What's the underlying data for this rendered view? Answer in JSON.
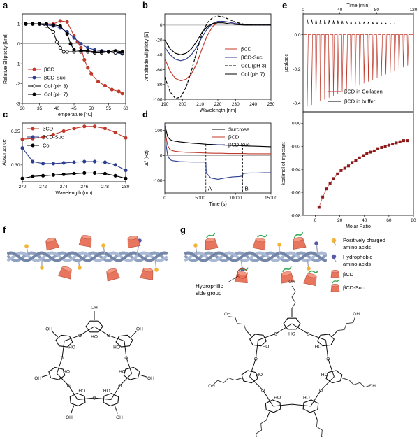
{
  "panels": {
    "a": {
      "letter": "a",
      "chart_data": {
        "type": "line",
        "xlabel": "Temperature [°C]",
        "ylabel": "Relative Ellipticity [θrel]",
        "xlim": [
          30,
          60
        ],
        "ylim": [
          -3,
          1.5
        ],
        "xticks": [
          30,
          35,
          40,
          45,
          50,
          55,
          60
        ],
        "yticks": [
          1,
          0,
          -1,
          -2,
          -3
        ],
        "grid": false,
        "legend": "lower-left",
        "series": [
          {
            "name": "βCD",
            "color": "#c0392b",
            "marker": "filled",
            "x": [
              31,
              33,
              35,
              37,
              39,
              41,
              43,
              45,
              46,
              47,
              48,
              49,
              50,
              52,
              54,
              56,
              58,
              59
            ],
            "y": [
              1.0,
              1.0,
              1.0,
              1.0,
              1.0,
              1.15,
              1.1,
              0.4,
              0.1,
              -0.2,
              -0.8,
              -1.2,
              -1.5,
              -1.9,
              -2.1,
              -2.3,
              -2.4,
              -2.5
            ]
          },
          {
            "name": "βCD-Suc",
            "color": "#2c3e8f",
            "marker": "filled",
            "x": [
              31,
              33,
              35,
              37,
              39,
              41,
              43,
              45,
              47,
              49,
              51,
              53,
              55,
              57,
              59
            ],
            "y": [
              1.0,
              1.0,
              1.0,
              0.95,
              0.9,
              0.8,
              0.6,
              0.3,
              0.0,
              -0.2,
              -0.3,
              -0.35,
              -0.4,
              -0.45,
              -0.5
            ]
          },
          {
            "name": "Col (pH 3)",
            "color": "#000000",
            "marker": "open",
            "x": [
              31,
              33,
              35,
              37,
              39,
              40,
              41,
              42,
              43,
              45,
              47,
              49,
              51,
              53,
              55,
              57,
              59
            ],
            "y": [
              1.0,
              1.0,
              1.0,
              0.9,
              0.6,
              0.1,
              -0.2,
              -0.4,
              -0.4,
              -0.4,
              -0.4,
              -0.4,
              -0.45,
              -0.45,
              -0.4,
              -0.45,
              -0.45
            ]
          },
          {
            "name": "Col (pH 7)",
            "color": "#000000",
            "marker": "filled",
            "x": [
              31,
              33,
              35,
              37,
              39,
              41,
              43,
              44,
              45,
              47,
              49,
              51,
              53,
              55,
              57,
              59
            ],
            "y": [
              1.0,
              1.0,
              1.0,
              1.0,
              0.95,
              0.9,
              0.5,
              0.0,
              -0.3,
              -0.35,
              -0.35,
              -0.4,
              -0.4,
              -0.4,
              -0.35,
              -0.4
            ]
          }
        ]
      }
    },
    "b": {
      "letter": "b",
      "chart_data": {
        "type": "line",
        "xlabel": "Wavelength [nm]",
        "ylabel": "Amplitude Ellipticity [θ]",
        "xlim": [
          190,
          250
        ],
        "ylim": [
          -100,
          15
        ],
        "xticks": [
          190,
          200,
          210,
          220,
          230,
          240,
          250
        ],
        "yticks": [
          0,
          -20,
          -40,
          -60,
          -80,
          -100
        ],
        "grid": false,
        "legend": "right",
        "series": [
          {
            "name": "βCD",
            "color": "#c0392b",
            "dash": false,
            "x": [
              190,
              193,
              196,
              199,
              202,
              205,
              208,
              211,
              214,
              217,
              220,
              223,
              226,
              230,
              235,
              240,
              245,
              250
            ],
            "y": [
              -45,
              -62,
              -72,
              -75,
              -73,
              -66,
              -52,
              -32,
              -14,
              -2,
              4,
              5,
              4,
              2,
              1,
              0,
              0,
              0
            ]
          },
          {
            "name": "βCD-Suc",
            "color": "#2c3e8f",
            "dash": false,
            "x": [
              190,
              193,
              196,
              199,
              202,
              205,
              208,
              211,
              214,
              217,
              220,
              223,
              226,
              230,
              235,
              240,
              245,
              250
            ],
            "y": [
              -30,
              -40,
              -46,
              -48,
              -46,
              -40,
              -30,
              -16,
              -5,
              2,
              5,
              5,
              4,
              2,
              1,
              0,
              0,
              0
            ]
          },
          {
            "name": "CoL (pH 3)",
            "color": "#000000",
            "dash": true,
            "x": [
              190,
              193,
              196,
              199,
              202,
              205,
              208,
              211,
              214,
              217,
              220,
              223,
              226,
              230,
              235,
              240,
              245,
              250
            ],
            "y": [
              -70,
              -90,
              -99,
              -97,
              -84,
              -62,
              -36,
              -12,
              3,
              10,
              12,
              11,
              8,
              4,
              1,
              0,
              0,
              0
            ]
          },
          {
            "name": "Col (pH 7)",
            "color": "#000000",
            "dash": false,
            "x": [
              190,
              193,
              196,
              199,
              202,
              205,
              208,
              211,
              214,
              217,
              220,
              223,
              226,
              230,
              235,
              240,
              245,
              250
            ],
            "y": [
              -20,
              -32,
              -38,
              -40,
              -38,
              -32,
              -22,
              -10,
              -2,
              2,
              3,
              3,
              2,
              1,
              0,
              0,
              0,
              0
            ]
          }
        ]
      }
    },
    "c": {
      "letter": "c",
      "chart_data": {
        "type": "line",
        "xlabel": "Wavelength (nm)",
        "ylabel": "Absorbance",
        "xlim": [
          270,
          280
        ],
        "ylim": [
          0.275,
          0.362
        ],
        "xticks": [
          270,
          272,
          274,
          276,
          278,
          280
        ],
        "yticks": [
          0.35,
          0.3
        ],
        "grid": false,
        "legend": "top-left",
        "series": [
          {
            "name": "βCD",
            "color": "#c0392b",
            "x": [
              270,
              271,
              272,
              273,
              274,
              275,
              276,
              277,
              278,
              279,
              280
            ],
            "y": [
              0.338,
              0.339,
              0.341,
              0.345,
              0.35,
              0.354,
              0.357,
              0.357,
              0.354,
              0.348,
              0.34
            ]
          },
          {
            "name": "βCD-Suc",
            "color": "#2c3e8f",
            "x": [
              270,
              271,
              272,
              273,
              274,
              275,
              276,
              277,
              278,
              279,
              280
            ],
            "y": [
              0.325,
              0.305,
              0.302,
              0.302,
              0.303,
              0.304,
              0.305,
              0.305,
              0.304,
              0.3,
              0.292
            ]
          },
          {
            "name": "Col",
            "color": "#000000",
            "x": [
              270,
              271,
              272,
              273,
              274,
              275,
              276,
              277,
              278,
              279,
              280
            ],
            "y": [
              0.28,
              0.283,
              0.284,
              0.285,
              0.286,
              0.287,
              0.288,
              0.288,
              0.287,
              0.284,
              0.28
            ]
          }
        ]
      }
    },
    "d": {
      "letter": "d",
      "chart_data": {
        "type": "line",
        "xlabel": "Time (s)",
        "ylabel": "Δf (Hz)",
        "xlim": [
          0,
          15000
        ],
        "ylim": [
          -150,
          130
        ],
        "xticks": [
          0,
          5000,
          10000,
          15000
        ],
        "yticks": [
          100,
          0,
          -100
        ],
        "grid": false,
        "legend": "top-right",
        "annotations": [
          "A",
          "B"
        ],
        "series": [
          {
            "name": "Surcrose",
            "color": "#000000",
            "x": [
              0,
              200,
              400,
              700,
              1000,
              1500,
              2000,
              3000,
              4000,
              5000,
              6000,
              7000,
              8000,
              9000,
              10000,
              11000,
              12000,
              13000,
              14000,
              15000
            ],
            "y": [
              120,
              100,
              75,
              65,
              60,
              57,
              55,
              52,
              49,
              47,
              45,
              44,
              42,
              41,
              40,
              39,
              38,
              37,
              36,
              35
            ]
          },
          {
            "name": "βCD",
            "color": "#c0392b",
            "x": [
              0,
              200,
              400,
              700,
              1000,
              1500,
              2000,
              3000,
              4000,
              5000,
              6000,
              7000,
              8000,
              9000,
              10000,
              11000,
              12000,
              13000,
              14000,
              15000
            ],
            "y": [
              120,
              70,
              40,
              25,
              20,
              17,
              15,
              13,
              12,
              11,
              10,
              9,
              9,
              8,
              8,
              8,
              7,
              7,
              7,
              7
            ]
          },
          {
            "name": "βCD-Suc",
            "color": "#2c3e8f",
            "x": [
              0,
              200,
              400,
              700,
              1000,
              1500,
              2000,
              3000,
              4000,
              5000,
              5800,
              5850,
              6500,
              7500,
              8500,
              9500,
              10500,
              11000,
              11050,
              12000,
              13000,
              14000,
              15000
            ],
            "y": [
              120,
              40,
              0,
              -15,
              -20,
              -22,
              -24,
              -25,
              -26,
              -26,
              -26,
              -70,
              -90,
              -95,
              -90,
              -86,
              -84,
              -82,
              -72,
              -70,
              -70,
              -69,
              -69
            ]
          }
        ]
      }
    },
    "e": {
      "letter": "e",
      "top": {
        "chart_data": {
          "type": "line",
          "title": "Time (min)",
          "ylabel": "μcal/sec",
          "xlim": [
            0,
            120
          ],
          "ylim": [
            -0.45,
            0.12
          ],
          "xticks": [
            0,
            40,
            80,
            120
          ],
          "yticks": [
            0.0,
            -0.2,
            -0.4
          ],
          "legend": "lower-right",
          "series": [
            {
              "name": "βCD in Collagen",
              "color": "#c0392b",
              "injections": 24,
              "peak_first": -0.42,
              "peak_last": -0.18,
              "baseline": 0.0
            },
            {
              "name": "βCD in buffer",
              "color": "#000000",
              "injections": 24,
              "peak_first": 0.09,
              "peak_last": 0.06,
              "baseline": 0.06
            }
          ]
        }
      },
      "bottom": {
        "chart_data": {
          "type": "scatter",
          "xlabel": "Molar Ratio",
          "ylabel": "kcal/mol of injectant",
          "xlim": [
            -10,
            80
          ],
          "ylim": [
            -0.08,
            0.01
          ],
          "xticks": [
            0,
            20,
            40,
            60,
            80
          ],
          "yticks": [
            0.0,
            -0.02,
            -0.04,
            -0.06,
            -0.08
          ],
          "series": [
            {
              "name": "",
              "color": "#8b1a1a",
              "x": [
                3,
                6,
                9,
                12,
                15,
                18,
                21,
                24,
                27,
                30,
                33,
                36,
                39,
                42,
                45,
                48,
                51,
                54,
                57,
                60,
                63,
                66,
                69,
                72,
                75
              ],
              "y": [
                -0.073,
                -0.064,
                -0.057,
                -0.052,
                -0.048,
                -0.044,
                -0.041,
                -0.039,
                -0.037,
                -0.034,
                -0.032,
                -0.03,
                -0.028,
                -0.026,
                -0.025,
                -0.024,
                -0.022,
                -0.021,
                -0.02,
                -0.019,
                -0.018,
                -0.017,
                -0.016,
                -0.015,
                -0.015
              ]
            }
          ]
        }
      }
    },
    "f": {
      "letter": "f"
    },
    "g": {
      "letter": "g",
      "legend": [
        {
          "label": "Positively charged amino acids",
          "lines": [
            "Positively charged",
            "amino acids"
          ],
          "color": "#f2b53a"
        },
        {
          "label": "Hydrophobic amino acids",
          "lines": [
            "Hydrophobic",
            "amino acids"
          ],
          "color": "#5b57a6"
        },
        {
          "label": "βCD",
          "lines": [
            "βCD"
          ],
          "color": "#e8765f"
        },
        {
          "label": "βCD-Suc",
          "lines": [
            "βCD-Suc"
          ],
          "color": "#3daa5a"
        }
      ],
      "callout": {
        "label": "Hydrophilic side group",
        "lines": [
          "Hydrophilic",
          "side group"
        ]
      }
    }
  },
  "chem": {
    "ring_labels_f": [
      "OH",
      "HO",
      "OH",
      "OH",
      "HO",
      "OH",
      "OH",
      "HO",
      "OH",
      "OH",
      "HO",
      "OH",
      "OH",
      "HO",
      "OH",
      "OH",
      "HO",
      "OH",
      "HO",
      "OH",
      "OH"
    ],
    "o_label": "O",
    "oh_label": "OH",
    "ho_label": "HO"
  }
}
